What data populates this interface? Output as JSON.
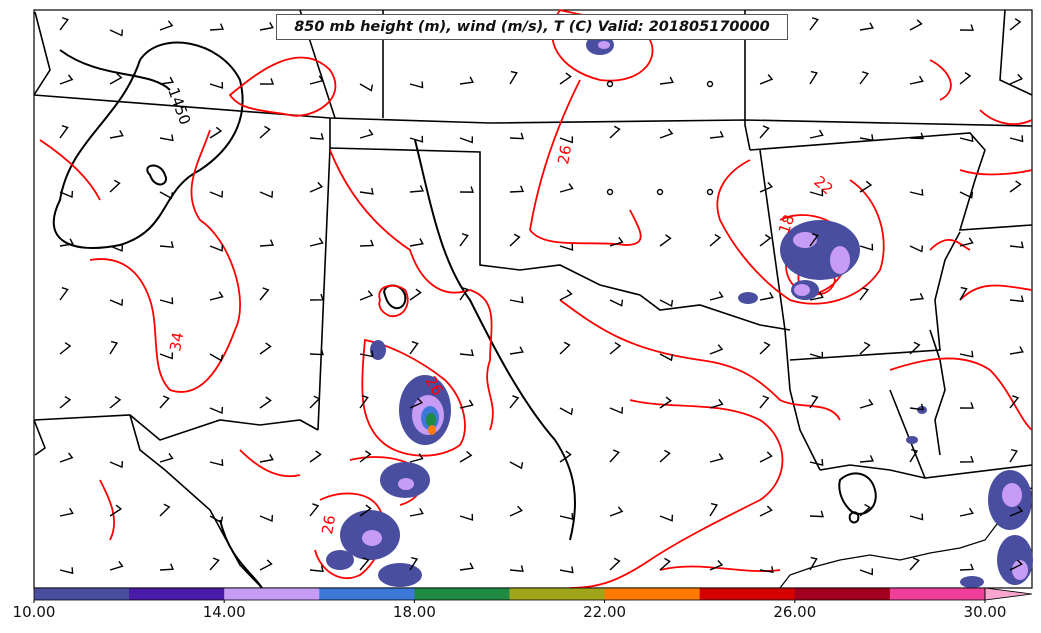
{
  "title": "850 mb height (m), wind (m/s), T (C) Valid: 201805170000",
  "colorbar": {
    "min": 10.0,
    "max": 31.0,
    "ticks": [
      "10.00",
      "14.00",
      "18.00",
      "22.00",
      "26.00",
      "30.00"
    ],
    "tick_values": [
      10,
      14,
      18,
      22,
      26,
      30
    ],
    "colors": [
      "#4a4ea0",
      "#4a1aa8",
      "#c69cf5",
      "#3b78d8",
      "#1f8a44",
      "#a0a51a",
      "#ff7a00",
      "#d40000",
      "#a0001e",
      "#ef3f9b",
      "#f8a6cf"
    ],
    "extend": "max"
  },
  "contour_labels": {
    "height": [
      "1450"
    ],
    "temperature": [
      "26",
      "22",
      "18",
      "34",
      "26",
      "26"
    ]
  },
  "colors": {
    "temperature_contours": "#ff0000",
    "height_contours": "#000000",
    "borders": "#000000",
    "wind_barbs": "#000000"
  }
}
